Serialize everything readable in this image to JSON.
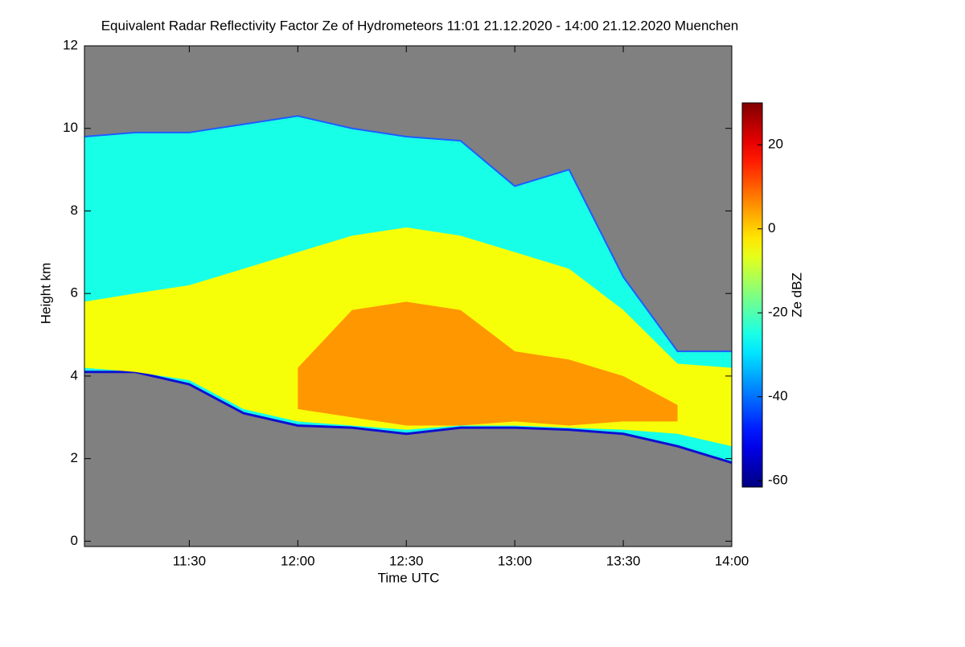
{
  "chart_data": {
    "type": "time-height",
    "title": "Equivalent Radar Reflectivity Factor Ze of Hydrometeors    11:01 21.12.2020 - 14:00 21.12.2020 Muenchen",
    "x_label": "Time UTC",
    "y_label": "Height km",
    "colorbar_label": "Ze dBZ",
    "background": "#808080",
    "xlim": [
      11.0167,
      14.0
    ],
    "xticks": [
      {
        "value": 11.5,
        "label": "11:30"
      },
      {
        "value": 12.0,
        "label": "12:00"
      },
      {
        "value": 12.5,
        "label": "12:30"
      },
      {
        "value": 13.0,
        "label": "13:00"
      },
      {
        "value": 13.5,
        "label": "13:30"
      },
      {
        "value": 14.0,
        "label": "14:00"
      }
    ],
    "ylim": [
      -0.13,
      12
    ],
    "yticks": [
      0,
      2,
      4,
      6,
      8,
      10,
      12
    ],
    "clim": [
      -61.5,
      30
    ],
    "cticks": [
      -60,
      -40,
      -20,
      0,
      20
    ],
    "layers": [
      {
        "value": -25,
        "x": [
          11.0167,
          11.25,
          11.5,
          11.75,
          12.0,
          12.25,
          12.5,
          12.75,
          13.0,
          13.25,
          13.5,
          13.75,
          14.0
        ],
        "top": [
          9.8,
          9.9,
          9.9,
          10.1,
          10.3,
          10.0,
          9.8,
          9.7,
          8.6,
          9.0,
          6.4,
          4.6,
          4.6
        ],
        "base": [
          4.1,
          4.1,
          3.8,
          3.1,
          2.8,
          2.75,
          2.6,
          2.75,
          2.75,
          2.7,
          2.6,
          2.3,
          1.9
        ]
      },
      {
        "value": -5,
        "x": [
          11.0167,
          11.25,
          11.5,
          11.75,
          12.0,
          12.25,
          12.5,
          12.75,
          13.0,
          13.25,
          13.5,
          13.75,
          14.0
        ],
        "top": [
          5.8,
          6.0,
          6.2,
          6.6,
          7.0,
          7.4,
          7.6,
          7.4,
          7.0,
          6.6,
          5.6,
          4.3,
          4.2
        ],
        "base": [
          4.2,
          4.1,
          3.9,
          3.2,
          2.9,
          2.8,
          2.7,
          2.8,
          2.8,
          2.75,
          2.7,
          2.6,
          2.3
        ]
      },
      {
        "value": 5,
        "x": [
          12.0,
          12.25,
          12.5,
          12.75,
          13.0,
          13.25,
          13.5,
          13.75
        ],
        "top": [
          4.2,
          5.6,
          5.8,
          5.6,
          4.6,
          4.4,
          4.0,
          3.3
        ],
        "base": [
          3.2,
          3.0,
          2.8,
          2.8,
          2.9,
          2.8,
          2.9,
          2.9
        ]
      }
    ]
  }
}
